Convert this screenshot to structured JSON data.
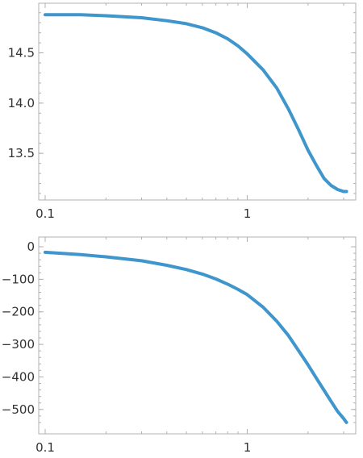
{
  "chart_data": [
    {
      "type": "line",
      "title": "",
      "xlabel": "",
      "ylabel": "",
      "x_scale": "log",
      "xlim": [
        0.1,
        3.2
      ],
      "ylim": [
        13.1,
        14.93
      ],
      "x_ticks": [
        {
          "value": 0.1,
          "label": "0.1"
        },
        {
          "value": 1,
          "label": "1"
        }
      ],
      "y_ticks": [
        {
          "value": 13.5,
          "label": "13.5"
        },
        {
          "value": 14.0,
          "label": "14.0"
        },
        {
          "value": 14.5,
          "label": "14.5"
        }
      ],
      "series_color": "#3f96cc",
      "series": [
        {
          "x": [
            0.1,
            0.15,
            0.2,
            0.3,
            0.4,
            0.5,
            0.6,
            0.7,
            0.8,
            0.9,
            1.0,
            1.2,
            1.4,
            1.6,
            1.8,
            2.0,
            2.2,
            2.4,
            2.6,
            2.8,
            3.0,
            3.1
          ],
          "y": [
            14.88,
            14.88,
            14.87,
            14.85,
            14.82,
            14.79,
            14.75,
            14.7,
            14.64,
            14.57,
            14.49,
            14.33,
            14.15,
            13.94,
            13.73,
            13.53,
            13.38,
            13.25,
            13.18,
            13.14,
            13.12,
            13.12
          ]
        }
      ]
    },
    {
      "type": "line",
      "title": "",
      "xlabel": "",
      "ylabel": "",
      "x_scale": "log",
      "xlim": [
        0.1,
        3.2
      ],
      "ylim": [
        -555,
        10
      ],
      "x_ticks": [
        {
          "value": 0.1,
          "label": "0.1"
        },
        {
          "value": 1,
          "label": "1"
        }
      ],
      "y_ticks": [
        {
          "value": 0,
          "label": "0"
        },
        {
          "value": -100,
          "label": "−100"
        },
        {
          "value": -200,
          "label": "−200"
        },
        {
          "value": -300,
          "label": "−300"
        },
        {
          "value": -400,
          "label": "−400"
        },
        {
          "value": -500,
          "label": "−500"
        }
      ],
      "series_color": "#3f96cc",
      "series": [
        {
          "x": [
            0.1,
            0.15,
            0.2,
            0.3,
            0.4,
            0.5,
            0.6,
            0.7,
            0.8,
            0.9,
            1.0,
            1.2,
            1.4,
            1.6,
            1.8,
            2.0,
            2.2,
            2.4,
            2.6,
            2.8,
            3.0,
            3.1
          ],
          "y": [
            -17,
            -24,
            -31,
            -43,
            -57,
            -70,
            -84,
            -99,
            -115,
            -131,
            -147,
            -186,
            -229,
            -273,
            -320,
            -363,
            -404,
            -441,
            -475,
            -506,
            -528,
            -540
          ]
        }
      ]
    }
  ]
}
